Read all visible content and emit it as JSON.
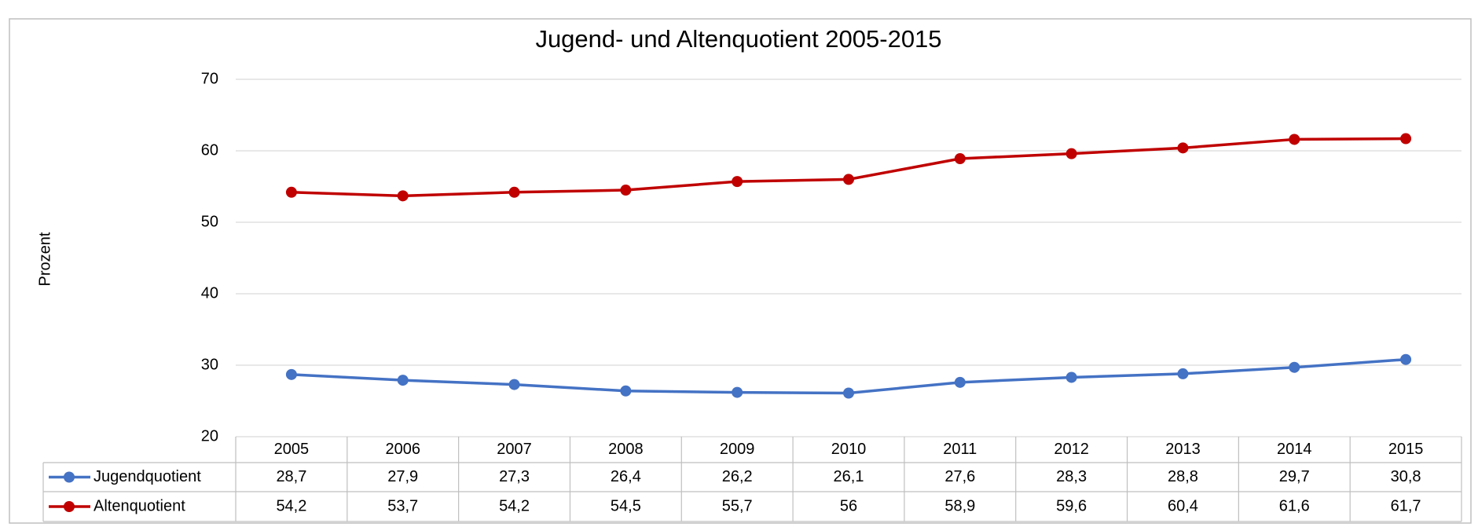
{
  "chart_data": {
    "type": "line",
    "title": "Jugend- und Altenquotient 2005-2015",
    "y_label": "Prozent",
    "categories": [
      "2005",
      "2006",
      "2007",
      "2008",
      "2009",
      "2010",
      "2011",
      "2012",
      "2013",
      "2014",
      "2015"
    ],
    "series": [
      {
        "name": "Jugendquotient",
        "color": "#4472c4",
        "values": [
          28.7,
          27.9,
          27.3,
          26.4,
          26.2,
          26.1,
          27.6,
          28.3,
          28.8,
          29.7,
          30.8
        ],
        "value_labels": [
          "28,7",
          "27,9",
          "27,3",
          "26,4",
          "26,2",
          "26,1",
          "27,6",
          "28,3",
          "28,8",
          "29,7",
          "30,8"
        ]
      },
      {
        "name": "Altenquotient",
        "color": "#c00000",
        "values": [
          54.2,
          53.7,
          54.2,
          54.5,
          55.7,
          56,
          58.9,
          59.6,
          60.4,
          61.6,
          61.7
        ],
        "value_labels": [
          "54,2",
          "53,7",
          "54,2",
          "54,5",
          "55,7",
          "56",
          "58,9",
          "59,6",
          "60,4",
          "61,6",
          "61,7"
        ]
      }
    ],
    "ylim": [
      20,
      70
    ],
    "yticks": [
      20,
      30,
      40,
      50,
      60,
      70
    ],
    "grid": true,
    "data_table": true
  }
}
